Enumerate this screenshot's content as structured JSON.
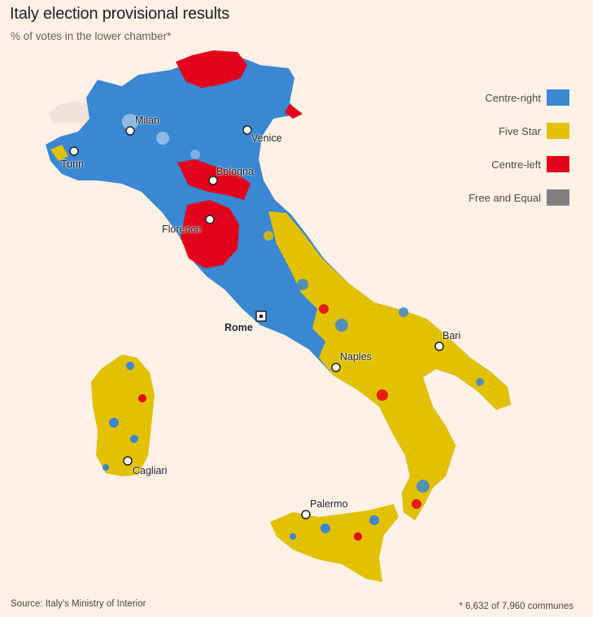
{
  "title": "Italy election provisional results",
  "subtitle": "% of votes in the lower chamber*",
  "legend": [
    {
      "label": "Centre-right",
      "color": "#3a87d3"
    },
    {
      "label": "Five Star",
      "color": "#e2c100"
    },
    {
      "label": "Centre-left",
      "color": "#e3001b"
    },
    {
      "label": "Free and Equal",
      "color": "#808080"
    }
  ],
  "cities": {
    "milan": "Milan",
    "venice": "Venice",
    "turin": "Turin",
    "bologna": "Bologna",
    "florence": "Florence",
    "rome": "Rome",
    "naples": "Naples",
    "bari": "Bari",
    "cagliari": "Cagliari",
    "palermo": "Palermo"
  },
  "colors": {
    "background": "#fff1e5",
    "centre_right": "#3a87d3",
    "five_star": "#e2c100",
    "centre_left": "#e3001b",
    "non_italy": "#f2e6db"
  },
  "source": "Source: Italy's Ministry of Interior",
  "footnote": "* 6,632 of 7,960 communes"
}
